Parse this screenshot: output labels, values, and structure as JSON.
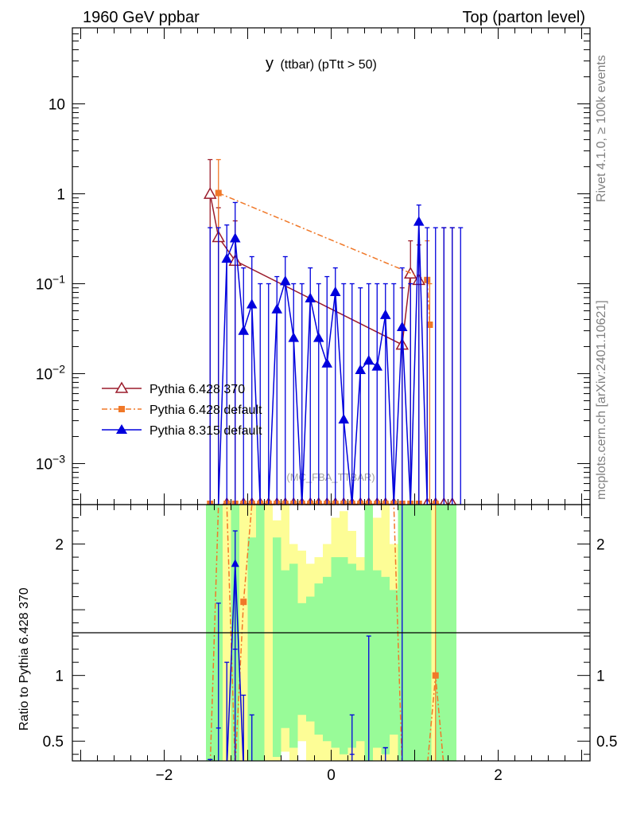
{
  "header": {
    "left": "1960 GeV ppbar",
    "right": "Top (parton level)",
    "side_right_top": "Rivet 4.1.0, ≥ 100k events",
    "side_right_bottom": "mcplots.cern.ch [arXiv:2401.10621]"
  },
  "chart_data": {
    "type": "line",
    "title": "y (ttbar) (pTtt > 50)",
    "title_main": "y",
    "title_sub": "(ttbar) (pTtt > 50)",
    "watermark": "(MC_FBA_TTBAR)",
    "xlabel": "",
    "ylabel": "",
    "ratio_ylabel": "Ratio to Pythia 6.428 370",
    "xlim": [
      -3.1,
      3.1
    ],
    "ylim": [
      0.00035,
      70
    ],
    "yscale": "log",
    "ratio_ylim": [
      0.35,
      2.3
    ],
    "x_tick_labels": [
      "−2",
      "0",
      "2"
    ],
    "x_ticks": [
      -2,
      0,
      2
    ],
    "y_tick_labels": [
      {
        "value": 10,
        "base": "10",
        "exp": ""
      },
      {
        "value": 1,
        "base": "1",
        "exp": ""
      },
      {
        "value": 0.1,
        "base": "10",
        "exp": "−1"
      },
      {
        "value": 0.01,
        "base": "10",
        "exp": "−2"
      },
      {
        "value": 0.001,
        "base": "10",
        "exp": "−3"
      }
    ],
    "ratio_tick_labels": [
      {
        "value": 0.5,
        "label": "0.5"
      },
      {
        "value": 1,
        "label": "1"
      },
      {
        "value": 2,
        "label": "2"
      }
    ],
    "bin_width": 0.1,
    "floor": 0.00035,
    "legend_entries": [
      "Pythia 6.428 370",
      "Pythia 6.428 default",
      "Pythia 8.315 default"
    ],
    "series": [
      {
        "name": "Pythia 6.428 370",
        "color": "#9b1c2c",
        "marker": "open-triangle",
        "dash": "",
        "x": [
          -1.45,
          -1.35,
          -1.15,
          0.85,
          0.95,
          1.05
        ],
        "y": [
          1.0,
          0.33,
          0.18,
          0.021,
          0.13,
          0.11
        ],
        "yerr_hi": [
          2.4,
          0.7,
          0.5,
          0.09,
          0.3,
          0.27
        ],
        "floor_x": [
          -1.25,
          -1.05,
          -0.95,
          -0.85,
          -0.75,
          -0.65,
          -0.55,
          -0.45,
          -0.35,
          -0.25,
          -0.15,
          -0.05,
          0.05,
          0.15,
          0.25,
          0.35,
          0.45,
          0.55,
          0.65,
          0.75,
          1.15,
          1.25,
          1.35,
          1.45
        ],
        "error_only_x": [
          1.35,
          1.45
        ],
        "error_only_hi": [
          0.42,
          0.42
        ]
      },
      {
        "name": "Pythia 6.428 default",
        "color": "#f07828",
        "marker": "square",
        "dash": "7,3,2,3",
        "x": [
          -1.35,
          1.15,
          1.18
        ],
        "y": [
          1.02,
          0.11,
          0.035
        ],
        "yerr_hi": [
          2.4,
          0.3,
          0.1
        ],
        "floor_x": [
          -1.45,
          -1.25,
          -1.15,
          -1.05,
          -0.95,
          -0.85,
          -0.75,
          -0.65,
          -0.55,
          -0.45,
          -0.35,
          -0.25,
          -0.15,
          -0.05,
          0.05,
          0.15,
          0.25,
          0.35,
          0.45,
          0.55,
          0.65,
          0.75,
          0.85,
          0.95,
          1.05,
          1.25
        ],
        "error_only_x": [],
        "error_only_hi": []
      },
      {
        "name": "Pythia 8.315 default",
        "color": "#0000dd",
        "marker": "triangle",
        "dash": "",
        "x": [
          -1.45,
          -1.35,
          -1.25,
          -1.15,
          -1.05,
          -0.95,
          -0.85,
          -0.75,
          -0.65,
          -0.55,
          -0.45,
          -0.35,
          -0.25,
          -0.15,
          -0.05,
          0.05,
          0.15,
          0.25,
          0.35,
          0.45,
          0.55,
          0.65,
          0.75,
          0.85,
          0.95,
          1.05,
          1.15,
          1.25
        ],
        "y": [
          0.00035,
          0.00035,
          0.19,
          0.32,
          0.03,
          0.059,
          0.00035,
          0.00035,
          0.052,
          0.107,
          0.025,
          0.00035,
          0.069,
          0.025,
          0.013,
          0.081,
          0.0031,
          0.00035,
          0.011,
          0.014,
          0.012,
          0.045,
          0.00035,
          0.033,
          0.00035,
          0.49,
          0.00035,
          0.00035
        ],
        "yerr_hi": [
          0.42,
          0.42,
          0.45,
          0.8,
          0.15,
          0.2,
          0.1,
          0.1,
          0.12,
          0.2,
          0.1,
          0.1,
          0.15,
          0.1,
          0.12,
          0.15,
          0.1,
          0.1,
          0.09,
          0.1,
          0.1,
          0.1,
          0.1,
          0.15,
          0.1,
          0.75,
          0.42,
          0.42
        ],
        "floor_x": [],
        "error_only_x": [
          1.35,
          1.45,
          1.55
        ],
        "error_only_hi": [
          0.42,
          0.42,
          0.42
        ]
      }
    ],
    "ratio_series": [
      {
        "name": "Pythia 6.428 default",
        "x": [
          -1.55,
          -1.45,
          -1.35,
          -1.25,
          -1.15,
          -1.05,
          -0.95,
          -0.85,
          0.75,
          0.85,
          1.15,
          1.25,
          1.35
        ],
        "y": [
          0.3,
          0.3,
          2.3,
          2.3,
          0.3,
          1.56,
          2.3,
          2.3,
          2.3,
          0.3,
          0.3,
          1.0,
          0.3
        ]
      },
      {
        "name": "Pythia 8.315 default",
        "x": [
          -1.25,
          -1.15,
          -1.05
        ],
        "y": [
          0.3,
          1.85,
          0.3
        ],
        "yerr": [
          [
            -1.45,
            0.36,
            0.0
          ],
          [
            -1.35,
            0.6,
            1.55
          ],
          [
            -1.25,
            0.3,
            1.1
          ],
          [
            -1.15,
            1.2,
            2.1
          ],
          [
            -1.05,
            0.3,
            0.85
          ],
          [
            -0.95,
            0.3,
            0.7
          ],
          [
            0.25,
            0.4,
            0.7
          ],
          [
            0.45,
            0.3,
            1.3
          ],
          [
            0.65,
            0.45,
            0.35
          ],
          [
            0.85,
            0.3,
            2.3
          ]
        ]
      }
    ],
    "ratio_band_outer": [
      [
        -1.5,
        -1.2,
        0.3,
        2.3
      ],
      [
        -1.2,
        -1.1,
        0.3,
        2.3
      ],
      [
        -1.1,
        -1.0,
        0.3,
        2.3
      ],
      [
        -1.0,
        -0.8,
        0.3,
        2.3
      ],
      [
        -0.8,
        -0.7,
        0.3,
        2.3
      ],
      [
        -0.7,
        -0.6,
        0.3,
        2.18
      ],
      [
        -0.6,
        -0.5,
        0.42,
        2.3
      ],
      [
        -0.5,
        -0.4,
        0.3,
        2.0
      ],
      [
        -0.4,
        -0.3,
        0.5,
        1.95
      ],
      [
        -0.3,
        -0.2,
        0.3,
        1.85
      ],
      [
        -0.2,
        -0.1,
        0.3,
        1.9
      ],
      [
        -0.1,
        0.0,
        0.3,
        2.0
      ],
      [
        0.0,
        0.1,
        0.3,
        2.2
      ],
      [
        0.1,
        0.2,
        0.3,
        2.25
      ],
      [
        0.2,
        0.3,
        0.3,
        2.1
      ],
      [
        0.3,
        0.4,
        0.3,
        1.9
      ],
      [
        0.4,
        0.5,
        0.3,
        2.3
      ],
      [
        0.5,
        0.6,
        0.3,
        2.2
      ],
      [
        0.6,
        0.7,
        0.3,
        2.3
      ],
      [
        0.7,
        0.8,
        0.3,
        2.0
      ],
      [
        0.8,
        1.1,
        0.3,
        2.3
      ],
      [
        1.1,
        1.2,
        0.3,
        2.3
      ],
      [
        1.2,
        1.3,
        0.3,
        2.3
      ],
      [
        1.3,
        1.5,
        0.3,
        2.3
      ]
    ],
    "ratio_band_inner": [
      [
        -1.5,
        -1.3,
        0.3,
        2.3
      ],
      [
        -1.2,
        -1.1,
        0.3,
        2.3
      ],
      [
        -1.0,
        -0.9,
        0.3,
        2.05
      ],
      [
        -0.9,
        -0.8,
        0.3,
        2.3
      ],
      [
        -0.7,
        -0.6,
        0.38,
        2.05
      ],
      [
        -0.6,
        -0.5,
        0.6,
        1.8
      ],
      [
        -0.5,
        -0.4,
        0.45,
        1.85
      ],
      [
        -0.4,
        -0.3,
        0.7,
        1.55
      ],
      [
        -0.3,
        -0.2,
        0.65,
        1.6
      ],
      [
        -0.2,
        -0.1,
        0.55,
        1.7
      ],
      [
        -0.1,
        0.0,
        0.5,
        1.75
      ],
      [
        0.0,
        0.1,
        0.45,
        1.9
      ],
      [
        0.1,
        0.2,
        0.4,
        1.9
      ],
      [
        0.2,
        0.3,
        0.45,
        1.85
      ],
      [
        0.3,
        0.4,
        0.5,
        1.8
      ],
      [
        0.4,
        0.5,
        0.3,
        2.3
      ],
      [
        0.5,
        0.6,
        0.45,
        1.8
      ],
      [
        0.6,
        0.7,
        0.4,
        1.75
      ],
      [
        0.7,
        0.8,
        0.55,
        1.65
      ],
      [
        0.8,
        1.1,
        0.3,
        2.3
      ],
      [
        1.1,
        1.2,
        0.3,
        2.3
      ],
      [
        1.25,
        1.3,
        0.3,
        2.3
      ],
      [
        1.3,
        1.5,
        0.3,
        2.3
      ]
    ]
  },
  "colors": {
    "band_outer": "#fdfd96",
    "band_inner": "#98fb98",
    "frame": "#000000"
  }
}
